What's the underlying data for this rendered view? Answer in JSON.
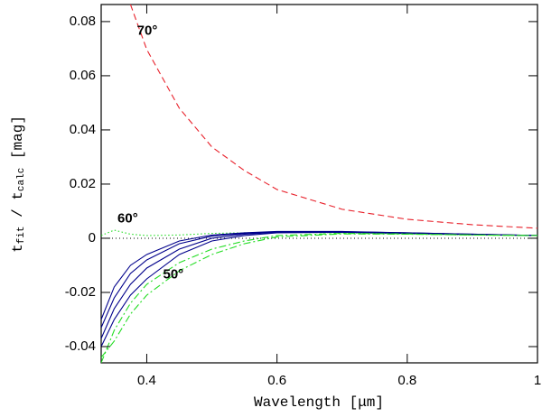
{
  "chart_data": {
    "type": "line",
    "xlabel": "Wavelength [μm]",
    "ylabel_parts": [
      "t",
      "fit",
      " / t",
      "calc",
      " [mag]"
    ],
    "x": [
      0.33,
      0.35,
      0.375,
      0.4,
      0.45,
      0.5,
      0.55,
      0.6,
      0.7,
      0.8,
      0.9,
      1.0
    ],
    "series": [
      {
        "color": "#e8202a",
        "style": "dashed",
        "values": [
          null,
          null,
          0.0863,
          0.0697,
          0.048,
          0.0337,
          0.025,
          0.018,
          0.0107,
          0.007,
          0.005,
          0.0037
        ]
      },
      {
        "color": "#22dd22",
        "style": "dotted",
        "values": [
          0.001,
          0.003,
          0.0015,
          0.001,
          0.0012,
          0.0018,
          0.002,
          0.0022,
          0.002,
          0.0016,
          0.0012,
          0.001
        ]
      },
      {
        "color": "#00008b",
        "style": "solid",
        "values": [
          -0.03,
          -0.018,
          -0.01,
          -0.006,
          -0.001,
          0.0012,
          0.002,
          0.0025,
          0.0025,
          0.002,
          0.0015,
          0.001
        ]
      },
      {
        "color": "#00008b",
        "style": "solid",
        "values": [
          -0.033,
          -0.022,
          -0.013,
          -0.008,
          -0.002,
          0.0008,
          0.0018,
          0.0024,
          0.0024,
          0.002,
          0.0015,
          0.001
        ]
      },
      {
        "color": "#00008b",
        "style": "solid",
        "values": [
          -0.037,
          -0.026,
          -0.017,
          -0.011,
          -0.004,
          0.0,
          0.0015,
          0.0022,
          0.0023,
          0.0019,
          0.0014,
          0.001
        ]
      },
      {
        "color": "#00008b",
        "style": "solid",
        "values": [
          -0.04,
          -0.03,
          -0.021,
          -0.015,
          -0.006,
          -0.001,
          0.001,
          0.002,
          0.0022,
          0.0018,
          0.0014,
          0.001
        ]
      },
      {
        "color": "#22dd22",
        "style": "dashdot",
        "values": [
          -0.046,
          -0.034,
          -0.024,
          -0.017,
          -0.009,
          -0.004,
          -0.001,
          0.001,
          0.0018,
          0.0016,
          0.0012,
          0.001
        ]
      },
      {
        "color": "#22dd22",
        "style": "dashdot",
        "values": [
          -0.044,
          -0.038,
          -0.028,
          -0.021,
          -0.012,
          -0.006,
          -0.002,
          0.0005,
          0.0016,
          0.0015,
          0.0012,
          0.001
        ]
      }
    ],
    "hlines": [
      0
    ],
    "annotations": [
      {
        "text": "70°",
        "x": 0.385,
        "y": 0.0765,
        "color": "#e8202a"
      },
      {
        "text": "60°",
        "x": 0.355,
        "y": 0.0072,
        "color": "#22dd22"
      },
      {
        "text": "50°",
        "x": 0.425,
        "y": -0.0135,
        "color": "#22dd22"
      }
    ],
    "xlim": [
      0.33,
      1.0
    ],
    "ylim": [
      -0.046,
      0.0863
    ],
    "xticks": [
      0.4,
      0.6,
      0.8,
      1
    ],
    "yticks": [
      -0.04,
      -0.02,
      0,
      0.02,
      0.04,
      0.06,
      0.08
    ]
  }
}
